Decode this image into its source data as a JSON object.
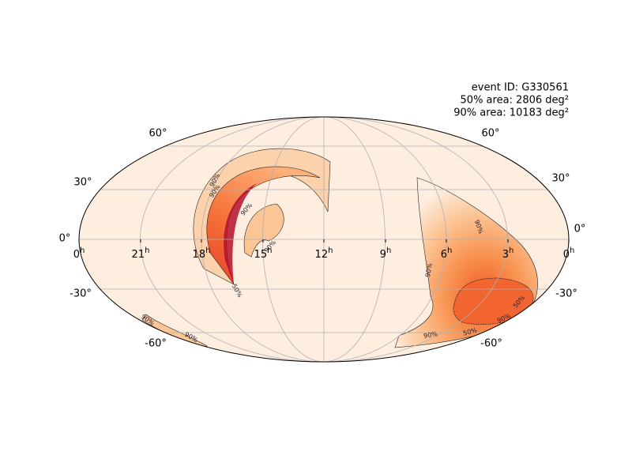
{
  "annotation": {
    "lines": [
      "event ID: G330561",
      "50% area: 2806 deg²",
      "90% area: 10183 deg²"
    ]
  },
  "ra_labels": [
    {
      "hours": "0",
      "unit": "h"
    },
    {
      "hours": "21",
      "unit": "h"
    },
    {
      "hours": "18",
      "unit": "h"
    },
    {
      "hours": "15",
      "unit": "h"
    },
    {
      "hours": "12",
      "unit": "h"
    },
    {
      "hours": "9",
      "unit": "h"
    },
    {
      "hours": "6",
      "unit": "h"
    },
    {
      "hours": "3",
      "unit": "h"
    },
    {
      "hours": "0",
      "unit": "h"
    }
  ],
  "dec_labels_left": [
    "60°",
    "30°",
    "0°",
    "-30°",
    "-60°"
  ],
  "dec_labels_right": [
    "60°",
    "30°",
    "0°",
    "-30°",
    "-60°"
  ],
  "contour_labels": [
    "90%",
    "90%",
    "90%",
    "90%",
    "50%",
    "90%",
    "90%",
    "90%",
    "90%",
    "90%",
    "50%",
    "90%",
    "50%"
  ]
}
